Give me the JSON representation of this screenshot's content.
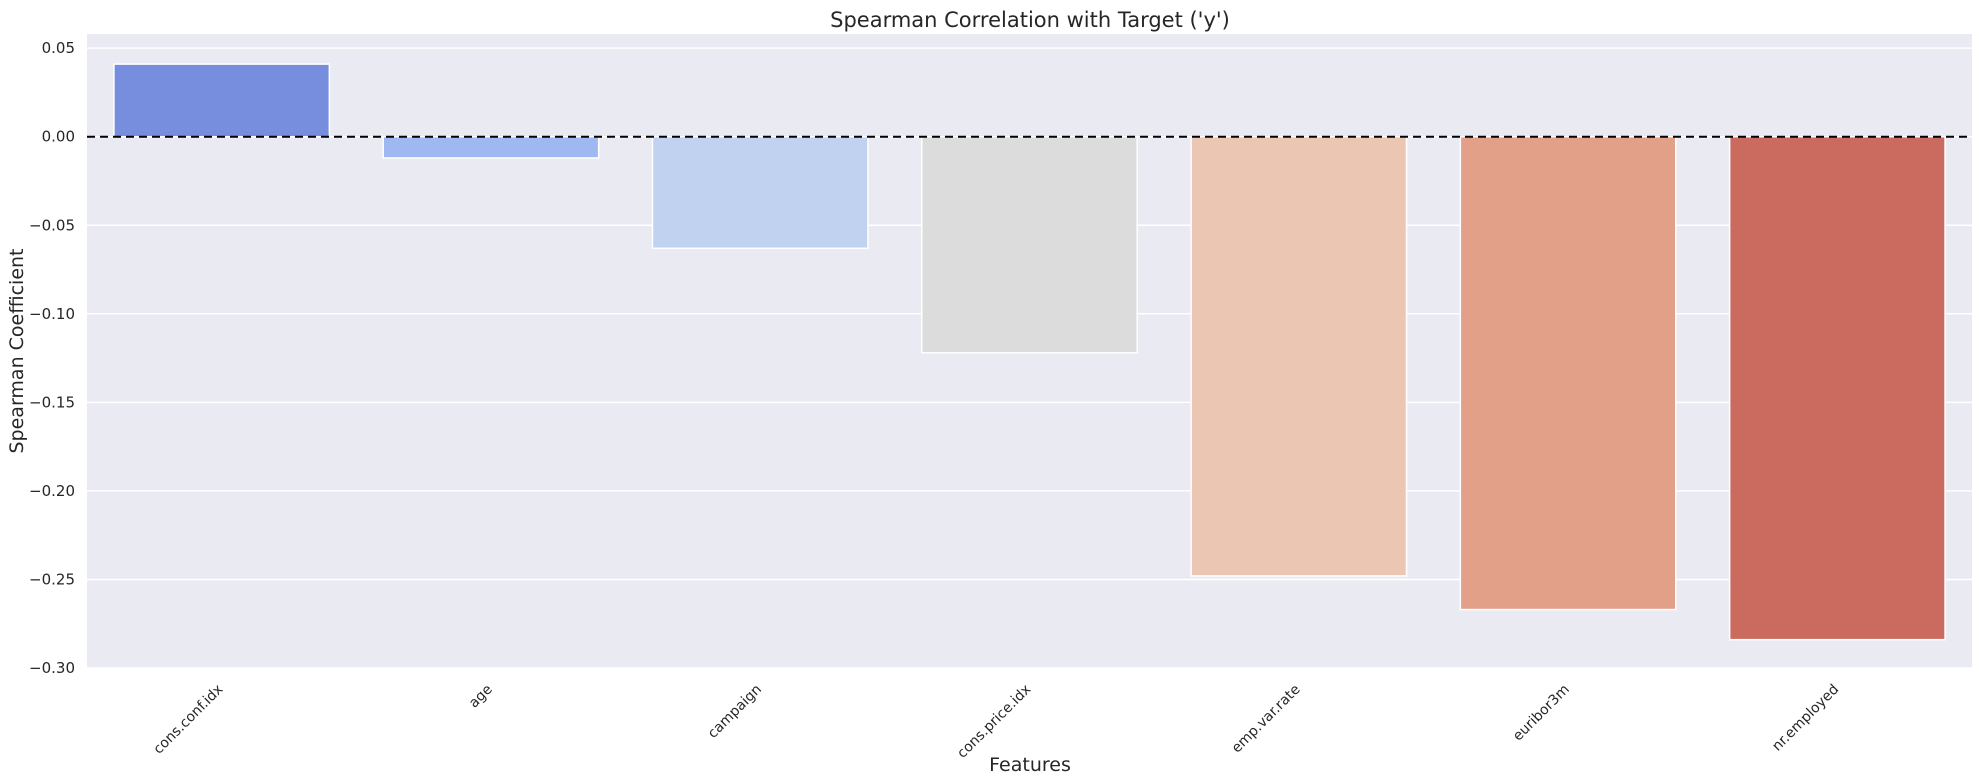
{
  "chart_data": {
    "type": "bar",
    "title": "Spearman Correlation with Target ('y')",
    "xlabel": "Features",
    "ylabel": "Spearman Coefficient",
    "categories": [
      "cons.conf.idx",
      "age",
      "campaign",
      "cons.price.idx",
      "emp.var.rate",
      "euribor3m",
      "nr.employed"
    ],
    "values": [
      0.041,
      -0.012,
      -0.063,
      -0.122,
      -0.248,
      -0.267,
      -0.284
    ],
    "colors": [
      "#778ddd",
      "#a0b8f2",
      "#c0d2f0",
      "#dcdcdc",
      "#ebc6b3",
      "#e3a088",
      "#cb6b5f"
    ],
    "ylim": [
      -0.3,
      0.058
    ],
    "yticks": [
      0.05,
      0.0,
      -0.05,
      -0.1,
      -0.15,
      -0.2,
      -0.25,
      -0.3
    ],
    "ytick_labels": [
      "0.05",
      "0.00",
      "−0.05",
      "−0.10",
      "−0.15",
      "−0.20",
      "−0.25",
      "−0.30"
    ],
    "reference_line": {
      "y": 0,
      "style": "dashed",
      "color": "#000000"
    },
    "grid": true,
    "background": "#eaeaf2"
  }
}
